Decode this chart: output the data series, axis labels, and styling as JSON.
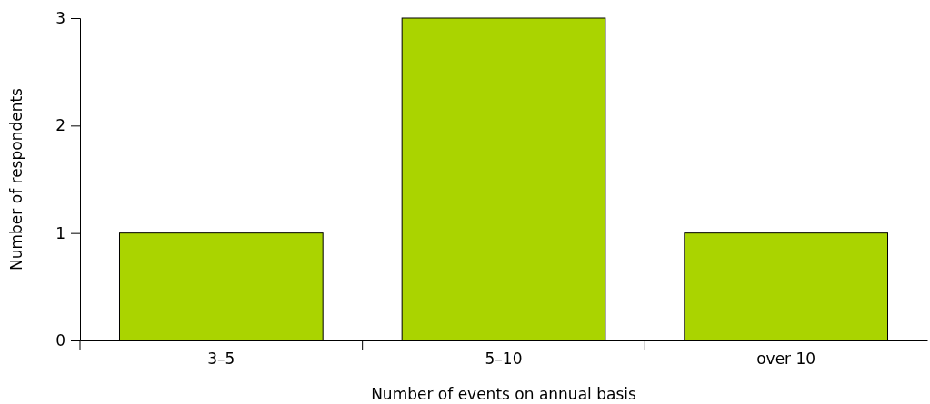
{
  "chart_data": {
    "type": "bar",
    "xlabel": "Number of events on annual basis",
    "ylabel": "Number of respondents",
    "categories": [
      "3–5",
      "5–10",
      "over 10"
    ],
    "values": [
      1,
      3,
      1
    ],
    "color": "#aad400",
    "ylim": [
      0,
      3
    ],
    "yticks": [
      0,
      1,
      2,
      3
    ],
    "grid": false
  }
}
